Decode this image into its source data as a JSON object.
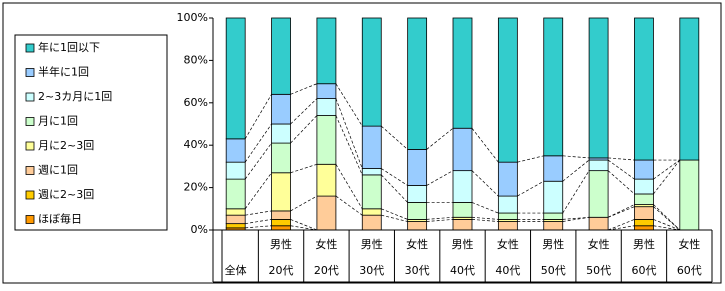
{
  "chart_data": {
    "type": "stacked_bar_100",
    "categories_top": [
      null,
      "男性",
      "女性",
      "男性",
      "女性",
      "男性",
      "女性",
      "男性",
      "女性",
      "男性",
      "女性"
    ],
    "categories": [
      "全体",
      "20代",
      "20代",
      "30代",
      "30代",
      "40代",
      "40代",
      "50代",
      "50代",
      "60代",
      "60代"
    ],
    "series": [
      {
        "name": "ほぼ毎日",
        "color": "#ff9900",
        "values": [
          1,
          2,
          0,
          0,
          0,
          0,
          0,
          0,
          0,
          2,
          0
        ]
      },
      {
        "name": "週に2~3回",
        "color": "#ffcc00",
        "values": [
          2,
          3,
          0,
          0,
          0,
          0,
          0,
          0,
          0,
          3,
          0
        ]
      },
      {
        "name": "週に1回",
        "color": "#ffcc99",
        "values": [
          4,
          4,
          16,
          7,
          4,
          5,
          4,
          4,
          6,
          6,
          0
        ]
      },
      {
        "name": "月に2~3回",
        "color": "#ffff99",
        "values": [
          3,
          18,
          15,
          3,
          1,
          1,
          1,
          1,
          0,
          1,
          0
        ]
      },
      {
        "name": "月に1回",
        "color": "#ccffcc",
        "values": [
          14,
          14,
          23,
          16,
          8,
          7,
          3,
          3,
          22,
          5,
          33
        ]
      },
      {
        "name": "2~3カ月に1回",
        "color": "#ccffff",
        "values": [
          8,
          9,
          8,
          3,
          8,
          15,
          8,
          15,
          5,
          7,
          0
        ]
      },
      {
        "name": "半年に1回",
        "color": "#99ccff",
        "values": [
          11,
          14,
          7,
          20,
          17,
          20,
          16,
          12,
          1,
          9,
          0
        ]
      },
      {
        "name": "年に1回以下",
        "color": "#33cccc",
        "values": [
          57,
          36,
          31,
          51,
          62,
          52,
          68,
          65,
          66,
          67,
          67
        ]
      }
    ],
    "ylim": [
      0,
      100
    ],
    "yticks": [
      {
        "value": 0,
        "label": "0%"
      },
      {
        "value": 20,
        "label": "20%"
      },
      {
        "value": 40,
        "label": "40%"
      },
      {
        "value": 60,
        "label": "60%"
      },
      {
        "value": 80,
        "label": "80%"
      },
      {
        "value": 100,
        "label": "100%"
      }
    ],
    "connector_lines": true
  }
}
